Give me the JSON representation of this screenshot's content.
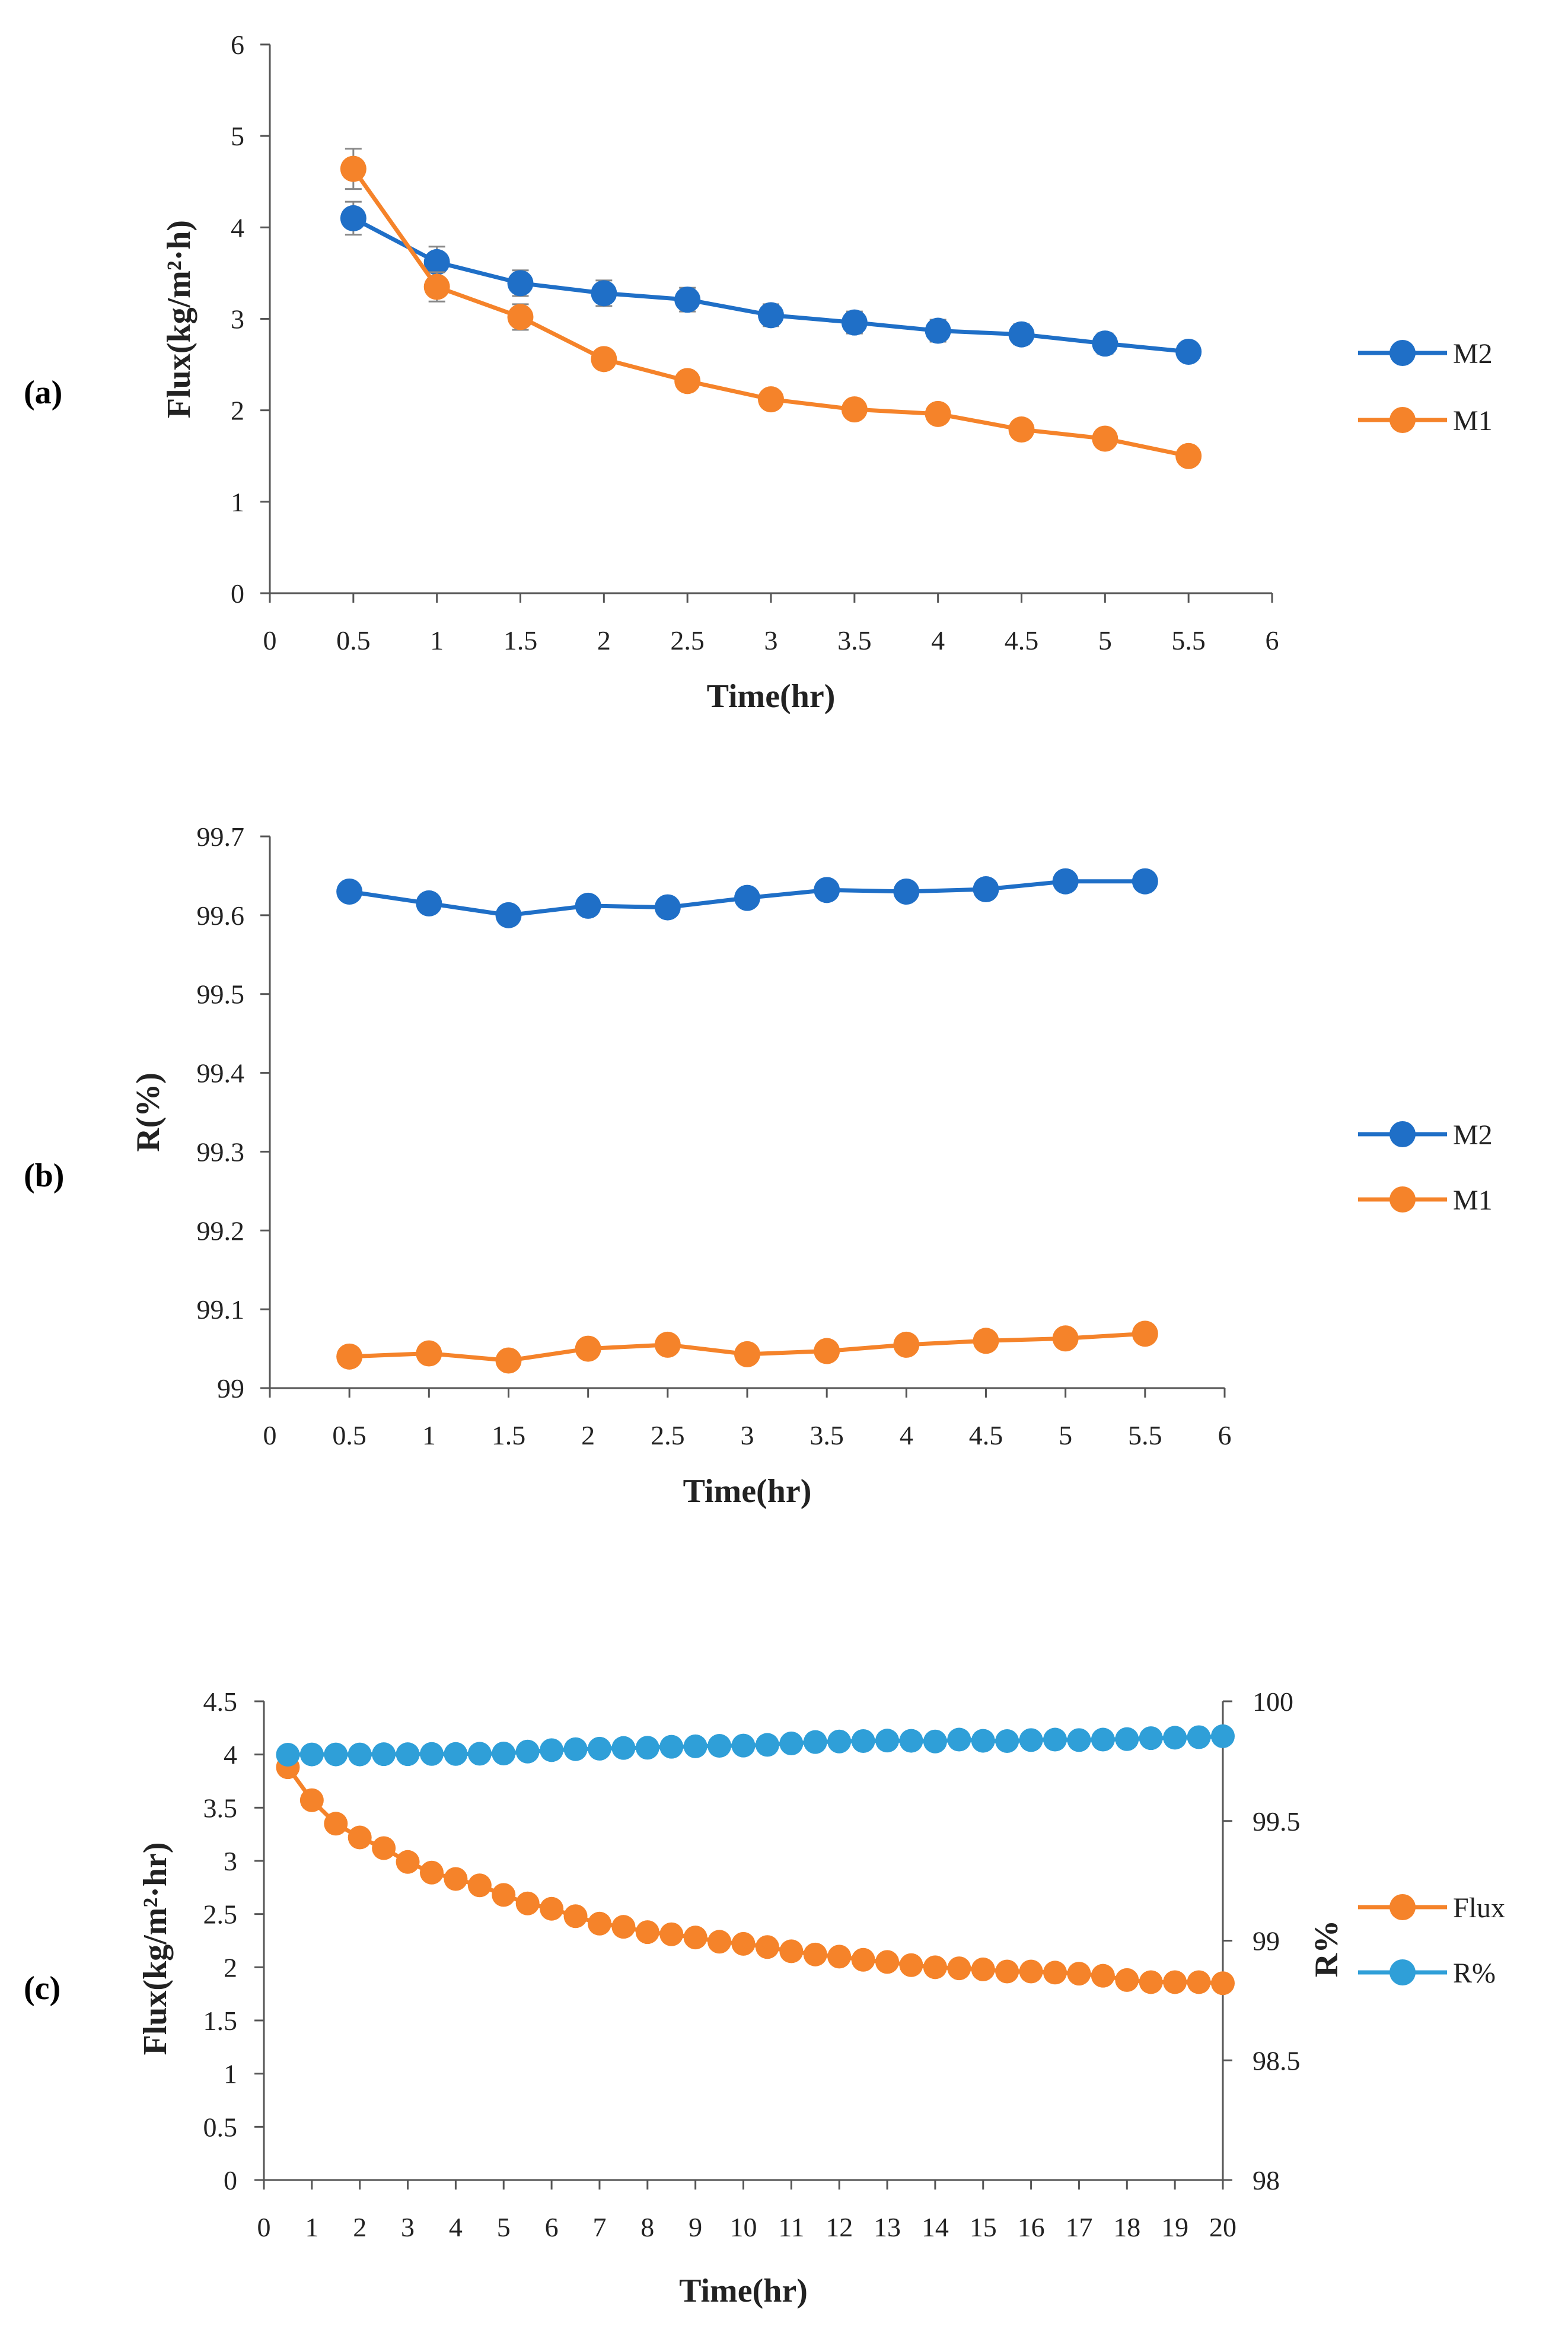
{
  "chart_data": [
    {
      "panel": "(a)",
      "type": "line",
      "xlabel": "Time(hr)",
      "ylabel": "Flux(kg/m²·h)",
      "xlim": [
        0,
        6
      ],
      "ylim": [
        0,
        6
      ],
      "xticks": [
        "0",
        "0.5",
        "1",
        "1.5",
        "2",
        "2.5",
        "3",
        "3.5",
        "4",
        "4.5",
        "5",
        "5.5",
        "6"
      ],
      "yticks": [
        "0",
        "1",
        "2",
        "3",
        "4",
        "5",
        "6"
      ],
      "x": [
        0.5,
        1,
        1.5,
        2,
        2.5,
        3,
        3.5,
        4,
        4.5,
        5,
        5.5
      ],
      "series": [
        {
          "name": "M2",
          "color": "#1f6fc7",
          "values": [
            4.1,
            3.62,
            3.39,
            3.28,
            3.21,
            3.04,
            2.96,
            2.87,
            2.83,
            2.73,
            2.64
          ],
          "err": [
            0.18,
            0.17,
            0.14,
            0.14,
            0.13,
            0.12,
            0.12,
            0.12,
            0.11,
            0.11,
            0.1
          ]
        },
        {
          "name": "M1",
          "color": "#f5832a",
          "values": [
            4.64,
            3.35,
            3.02,
            2.56,
            2.32,
            2.12,
            2.01,
            1.96,
            1.79,
            1.69,
            1.5
          ],
          "err": [
            0.22,
            0.16,
            0.14,
            0.1,
            0.07,
            0.07,
            0.06,
            0.06,
            0.06,
            0.05,
            0.05
          ]
        }
      ],
      "legend": "right"
    },
    {
      "panel": "(b)",
      "type": "line",
      "xlabel": "Time(hr)",
      "ylabel": "R(%)",
      "xlim": [
        0,
        6
      ],
      "ylim": [
        99,
        99.7
      ],
      "xticks": [
        "0",
        "0.5",
        "1",
        "1.5",
        "2",
        "2.5",
        "3",
        "3.5",
        "4",
        "4.5",
        "5",
        "5.5",
        "6"
      ],
      "yticks": [
        "99",
        "99.1",
        "99.2",
        "99.3",
        "99.4",
        "99.5",
        "99.6",
        "99.7"
      ],
      "x": [
        0.5,
        1,
        1.5,
        2,
        2.5,
        3,
        3.5,
        4,
        4.5,
        5,
        5.5
      ],
      "series": [
        {
          "name": "M2",
          "color": "#1f6fc7",
          "values": [
            99.63,
            99.615,
            99.6,
            99.612,
            99.61,
            99.622,
            99.632,
            99.63,
            99.633,
            99.643,
            99.643
          ]
        },
        {
          "name": "M1",
          "color": "#f5832a",
          "values": [
            99.04,
            99.044,
            99.035,
            99.05,
            99.055,
            99.043,
            99.047,
            99.055,
            99.06,
            99.063,
            99.069
          ]
        }
      ],
      "legend": "right"
    },
    {
      "panel": "(c)",
      "type": "line",
      "xlabel": "Time(hr)",
      "ylabel": "Flux(kg/m²·hr)",
      "ylabel_right": "R%",
      "xlim": [
        0,
        20
      ],
      "ylim": [
        0,
        4.5
      ],
      "ylim_right": [
        98,
        100
      ],
      "xticks": [
        "0",
        "1",
        "2",
        "3",
        "4",
        "5",
        "6",
        "7",
        "8",
        "9",
        "10",
        "11",
        "12",
        "13",
        "14",
        "15",
        "16",
        "17",
        "18",
        "19",
        "20"
      ],
      "yticks": [
        "0",
        "0.5",
        "1",
        "1.5",
        "2",
        "2.5",
        "3",
        "3.5",
        "4",
        "4.5"
      ],
      "yticks_right": [
        "98",
        "98.5",
        "99",
        "99.5",
        "100"
      ],
      "x": [
        0.5,
        1,
        1.5,
        2,
        2.5,
        3,
        3.5,
        4,
        4.5,
        5,
        5.5,
        6,
        6.5,
        7,
        7.5,
        8,
        8.5,
        9,
        9.5,
        10,
        10.5,
        11,
        11.5,
        12,
        12.5,
        13,
        13.5,
        14,
        14.5,
        15,
        15.5,
        16,
        16.5,
        17,
        17.5,
        18,
        18.5,
        19,
        19.5,
        20
      ],
      "series": [
        {
          "name": "Flux",
          "color": "#f5832a",
          "axis": "left",
          "values": [
            3.88,
            3.57,
            3.35,
            3.22,
            3.12,
            2.99,
            2.89,
            2.83,
            2.77,
            2.68,
            2.6,
            2.55,
            2.48,
            2.41,
            2.38,
            2.33,
            2.31,
            2.28,
            2.24,
            2.22,
            2.19,
            2.15,
            2.12,
            2.1,
            2.07,
            2.05,
            2.02,
            2.0,
            1.99,
            1.98,
            1.96,
            1.96,
            1.95,
            1.94,
            1.92,
            1.88,
            1.86,
            1.86,
            1.86,
            1.85
          ],
          "err": [
            0.09,
            0.07,
            0.06,
            0.06,
            0.05,
            0.05,
            0.05,
            0.05,
            0.05,
            0.04,
            0.04,
            0.04,
            0.04,
            0.04,
            0.04,
            0.03,
            0.03,
            0.03,
            0.03,
            0.03,
            0.03,
            0.03,
            0.03,
            0.03,
            0.03,
            0.03,
            0.03,
            0.03,
            0.03,
            0.03,
            0.03,
            0.03,
            0.03,
            0.03,
            0.03,
            0.03,
            0.03,
            0.03,
            0.03,
            0.03
          ]
        },
        {
          "name": "R%",
          "color": "#2f9fd8",
          "axis": "right",
          "values": [
            99.777,
            99.778,
            99.778,
            99.778,
            99.779,
            99.779,
            99.78,
            99.78,
            99.781,
            99.782,
            99.79,
            99.796,
            99.8,
            99.802,
            99.805,
            99.806,
            99.81,
            99.812,
            99.814,
            99.815,
            99.818,
            99.824,
            99.83,
            99.832,
            99.834,
            99.836,
            99.835,
            99.832,
            99.84,
            99.835,
            99.834,
            99.838,
            99.84,
            99.838,
            99.84,
            99.842,
            99.846,
            99.848,
            99.85,
            99.854
          ]
        }
      ],
      "legend": "right"
    }
  ]
}
